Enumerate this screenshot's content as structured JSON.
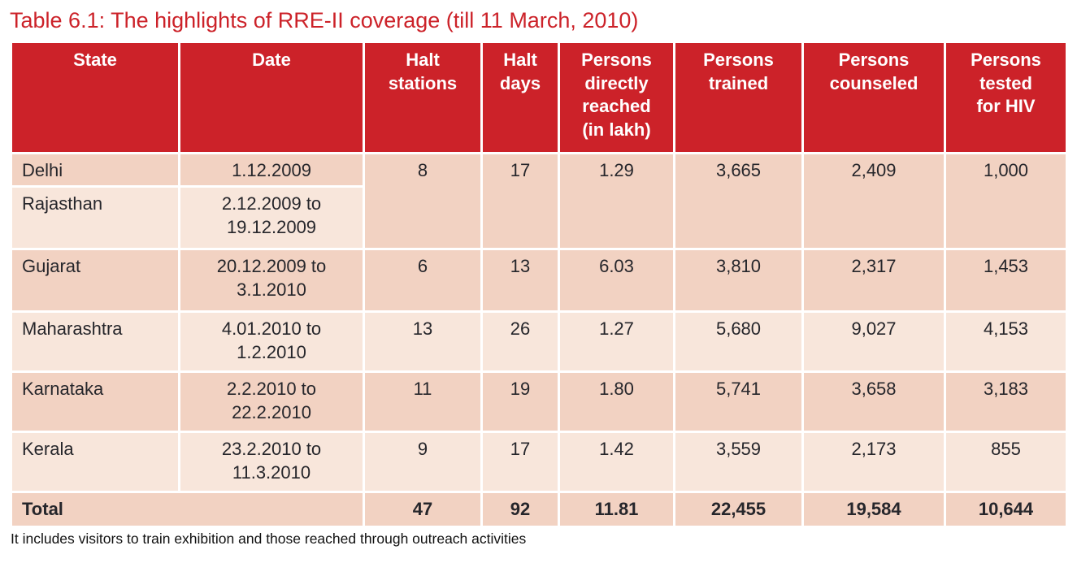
{
  "title": "Table 6.1: The highlights of RRE-II coverage (till 11 March, 2010)",
  "footnote": "It includes visitors to train exhibition and those reached through outreach activities",
  "colors": {
    "accent_red": "#cc2229",
    "header_text": "#ffffff",
    "row_dark": "#f2d2c2",
    "row_light": "#f8e6db",
    "body_text": "#26262b"
  },
  "table": {
    "columns": [
      "State",
      "Date",
      "Halt\nstations",
      "Halt\ndays",
      "Persons\ndirectly\nreached\n(in lakh)",
      "Persons\ntrained",
      "Persons\ncounseled",
      "Persons\ntested\nfor HIV"
    ],
    "rows": [
      {
        "state": "Delhi",
        "date": "1.12.2009",
        "halt_stations": "8",
        "halt_days": "17",
        "reached": "1.29",
        "trained": "3,665",
        "counseled": "2,409",
        "tested": "1,000"
      },
      {
        "state": "Rajasthan",
        "date": "2.12.2009 to\n19.12.2009"
      },
      {
        "state": "Gujarat",
        "date": "20.12.2009 to\n3.1.2010",
        "halt_stations": "6",
        "halt_days": "13",
        "reached": "6.03",
        "trained": "3,810",
        "counseled": "2,317",
        "tested": "1,453"
      },
      {
        "state": "Maharashtra",
        "date": "4.01.2010 to\n1.2.2010",
        "halt_stations": "13",
        "halt_days": "26",
        "reached": "1.27",
        "trained": "5,680",
        "counseled": "9,027",
        "tested": "4,153"
      },
      {
        "state": "Karnataka",
        "date": "2.2.2010 to\n22.2.2010",
        "halt_stations": "11",
        "halt_days": "19",
        "reached": "1.80",
        "trained": "5,741",
        "counseled": "3,658",
        "tested": "3,183"
      },
      {
        "state": "Kerala",
        "date": "23.2.2010 to\n11.3.2010",
        "halt_stations": "9",
        "halt_days": "17",
        "reached": "1.42",
        "trained": "3,559",
        "counseled": "2,173",
        "tested": "855"
      }
    ],
    "total": {
      "label": "Total",
      "halt_stations": "47",
      "halt_days": "92",
      "reached": "11.81",
      "trained": "22,455",
      "counseled": "19,584",
      "tested": "10,644"
    }
  }
}
